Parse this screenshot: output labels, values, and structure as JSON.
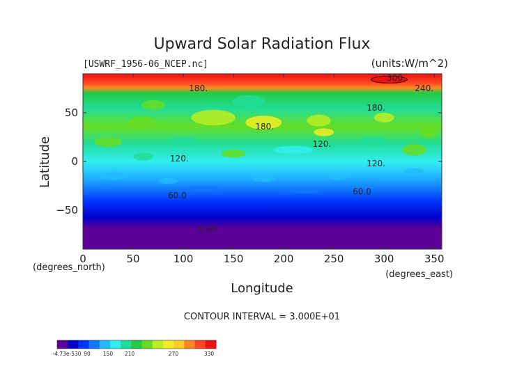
{
  "chart_data": {
    "type": "heatmap",
    "title": "Upward Solar Radiation Flux",
    "file_label": "[USWRF_1956-06_NCEP.nc]",
    "units_label": "(units:W/m^2)",
    "xlabel": "Longitude",
    "ylabel": "Latitude",
    "x_unit_label": "(degrees_east)",
    "y_unit_label": "(degrees_north)",
    "xlim": [
      0,
      357.5
    ],
    "ylim": [
      -90,
      90
    ],
    "x_ticks": [
      0,
      50,
      100,
      150,
      200,
      250,
      300,
      350
    ],
    "y_ticks": [
      -50,
      0,
      50
    ],
    "contour_interval_label": "CONTOUR INTERVAL = 3.000E+01",
    "contour_labels": [
      {
        "text": "300.",
        "lon": 312,
        "lat": 83
      },
      {
        "text": "240.",
        "lon": 340,
        "lat": 72
      },
      {
        "text": "180.",
        "lon": 115,
        "lat": 72
      },
      {
        "text": "180.",
        "lon": 292,
        "lat": 52
      },
      {
        "text": "180.",
        "lon": 181,
        "lat": 33
      },
      {
        "text": "120.",
        "lon": 238,
        "lat": 15
      },
      {
        "text": "120.",
        "lon": 96,
        "lat": 0
      },
      {
        "text": "120.",
        "lon": 292,
        "lat": -5
      },
      {
        "text": "60.0",
        "lon": 94,
        "lat": -38
      },
      {
        "text": "60.0",
        "lon": 278,
        "lat": -34
      },
      {
        "text": "0.00",
        "lon": 124,
        "lat": -72
      }
    ],
    "colorbar_ticks": [
      "-4.73e-530",
      "90",
      "150",
      "210",
      "270",
      "330"
    ],
    "colors": [
      "#5a0099",
      "#0000cc",
      "#0033ff",
      "#1177ff",
      "#22bbff",
      "#33eeee",
      "#22dd99",
      "#22cc44",
      "#66dd22",
      "#bbee22",
      "#eeee22",
      "#ffcc22",
      "#ff8822",
      "#ff4422",
      "#ee1111"
    ]
  }
}
